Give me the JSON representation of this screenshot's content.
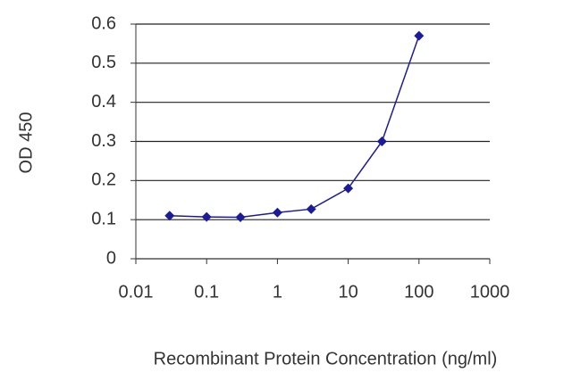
{
  "chart_data": {
    "type": "line",
    "x_label": "Recombinant Protein Concentration (ng/ml)",
    "y_label": "OD 450",
    "x": [
      0.03,
      0.1,
      0.3,
      1,
      3,
      10,
      30,
      100
    ],
    "series": [
      {
        "color": "#1c1c9a",
        "values": [
          0.11,
          0.107,
          0.106,
          0.118,
          0.127,
          0.18,
          0.3,
          0.57
        ]
      }
    ],
    "xscale": "log",
    "xlim": [
      0.01,
      1000
    ],
    "xticks": [
      0.01,
      0.1,
      1,
      10,
      100,
      1000
    ],
    "ylim": [
      0,
      0.6
    ],
    "yticks": [
      0,
      0.1,
      0.2,
      0.3,
      0.4,
      0.5,
      0.6
    ],
    "grid": true
  }
}
